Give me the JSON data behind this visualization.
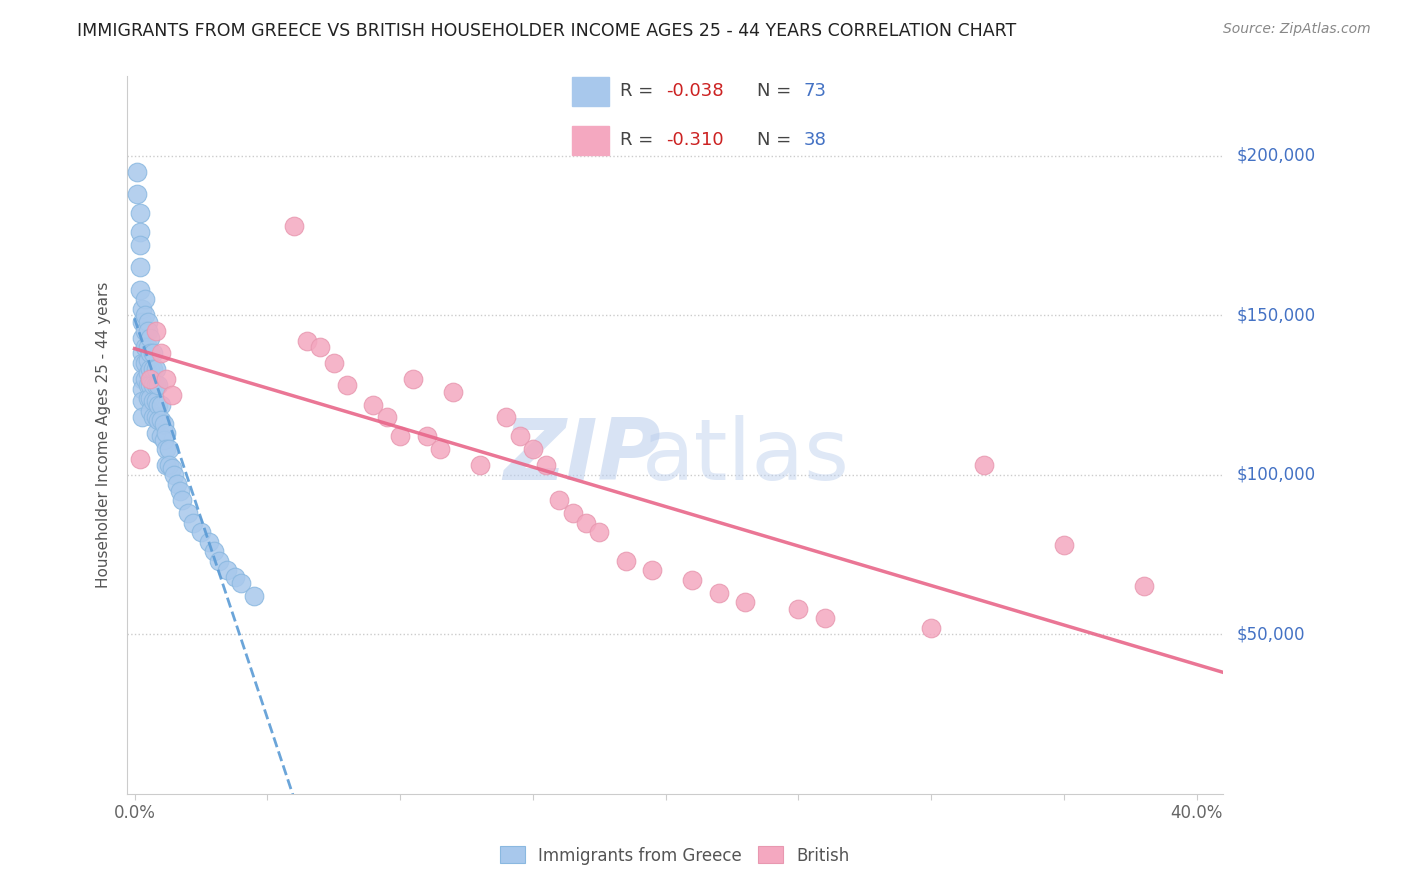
{
  "title": "IMMIGRANTS FROM GREECE VS BRITISH HOUSEHOLDER INCOME AGES 25 - 44 YEARS CORRELATION CHART",
  "source": "Source: ZipAtlas.com",
  "ylabel": "Householder Income Ages 25 - 44 years",
  "ytick_labels": [
    "$50,000",
    "$100,000",
    "$150,000",
    "$200,000"
  ],
  "ytick_vals": [
    50000,
    100000,
    150000,
    200000
  ],
  "xlim": [
    -0.003,
    0.41
  ],
  "ylim": [
    0,
    225000
  ],
  "legend_R1": "-0.038",
  "legend_N1": "73",
  "legend_R2": "-0.310",
  "legend_N2": "38",
  "color_blue": "#A8C8EC",
  "color_pink": "#F4A8C0",
  "trendline_blue_color": "#5B9BD5",
  "trendline_pink_color": "#E8678A",
  "watermark_color": "#C8D8F0",
  "blue_scatter_x": [
    0.001,
    0.001,
    0.002,
    0.002,
    0.002,
    0.002,
    0.002,
    0.003,
    0.003,
    0.003,
    0.003,
    0.003,
    0.003,
    0.003,
    0.003,
    0.003,
    0.004,
    0.004,
    0.004,
    0.004,
    0.004,
    0.004,
    0.005,
    0.005,
    0.005,
    0.005,
    0.005,
    0.005,
    0.005,
    0.006,
    0.006,
    0.006,
    0.006,
    0.006,
    0.006,
    0.007,
    0.007,
    0.007,
    0.007,
    0.007,
    0.008,
    0.008,
    0.008,
    0.008,
    0.008,
    0.009,
    0.009,
    0.009,
    0.01,
    0.01,
    0.01,
    0.011,
    0.011,
    0.012,
    0.012,
    0.012,
    0.013,
    0.013,
    0.014,
    0.015,
    0.016,
    0.017,
    0.018,
    0.02,
    0.022,
    0.025,
    0.028,
    0.03,
    0.032,
    0.035,
    0.038,
    0.04,
    0.045
  ],
  "blue_scatter_y": [
    195000,
    188000,
    182000,
    176000,
    172000,
    165000,
    158000,
    152000,
    148000,
    143000,
    138000,
    135000,
    130000,
    127000,
    123000,
    118000,
    155000,
    150000,
    145000,
    140000,
    135000,
    130000,
    148000,
    145000,
    140000,
    136000,
    132000,
    128000,
    124000,
    143000,
    138000,
    133000,
    128000,
    124000,
    120000,
    138000,
    133000,
    128000,
    123000,
    118000,
    133000,
    128000,
    123000,
    118000,
    113000,
    128000,
    122000,
    117000,
    122000,
    117000,
    112000,
    116000,
    111000,
    113000,
    108000,
    103000,
    108000,
    103000,
    102000,
    100000,
    97000,
    95000,
    92000,
    88000,
    85000,
    82000,
    79000,
    76000,
    73000,
    70000,
    68000,
    66000,
    62000
  ],
  "pink_scatter_x": [
    0.002,
    0.006,
    0.008,
    0.01,
    0.012,
    0.014,
    0.06,
    0.065,
    0.07,
    0.075,
    0.08,
    0.09,
    0.095,
    0.1,
    0.105,
    0.11,
    0.115,
    0.12,
    0.13,
    0.14,
    0.145,
    0.15,
    0.155,
    0.16,
    0.165,
    0.17,
    0.175,
    0.185,
    0.195,
    0.21,
    0.22,
    0.23,
    0.25,
    0.26,
    0.3,
    0.32,
    0.35,
    0.38
  ],
  "pink_scatter_y": [
    105000,
    130000,
    145000,
    138000,
    130000,
    125000,
    178000,
    142000,
    140000,
    135000,
    128000,
    122000,
    118000,
    112000,
    130000,
    112000,
    108000,
    126000,
    103000,
    118000,
    112000,
    108000,
    103000,
    92000,
    88000,
    85000,
    82000,
    73000,
    70000,
    67000,
    63000,
    60000,
    58000,
    55000,
    52000,
    103000,
    78000,
    65000
  ]
}
